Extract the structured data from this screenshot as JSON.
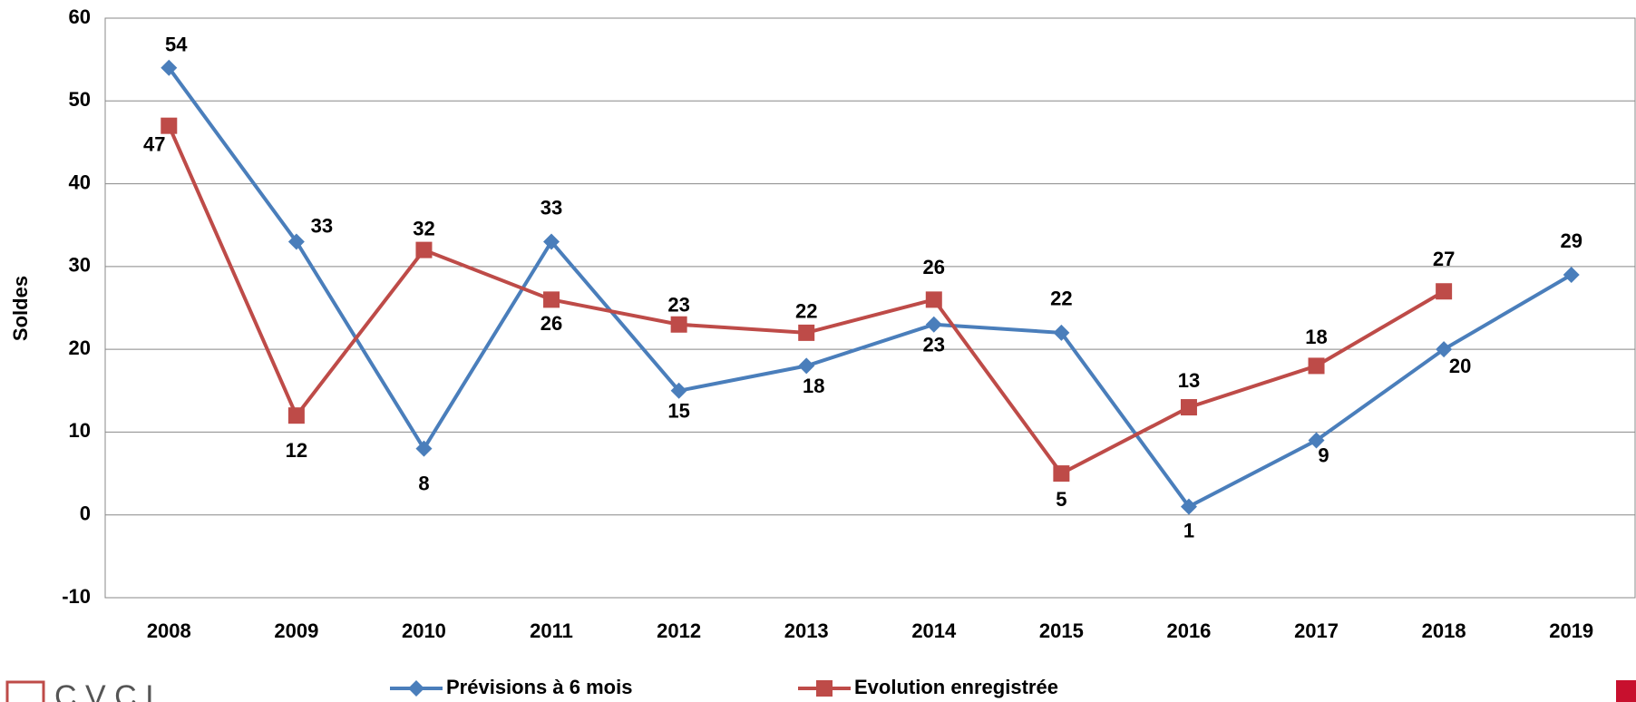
{
  "chart_data": {
    "type": "line",
    "y_label": "Soldes",
    "categories": [
      "2008",
      "2009",
      "2010",
      "2011",
      "2012",
      "2013",
      "2014",
      "2015",
      "2016",
      "2017",
      "2018",
      "2019"
    ],
    "series": [
      {
        "name": "Prévisions à 6 mois",
        "color": "#4a7ebb",
        "marker": "diamond",
        "values": [
          54,
          33,
          8,
          33,
          15,
          18,
          23,
          22,
          1,
          9,
          20,
          29
        ]
      },
      {
        "name": "Evolution enregistrée",
        "color": "#be4b48",
        "marker": "square",
        "values": [
          47,
          12,
          32,
          26,
          23,
          22,
          26,
          5,
          13,
          18,
          27,
          null
        ]
      }
    ],
    "ylim": [
      -10,
      60
    ],
    "yticks": [
      -10,
      0,
      10,
      20,
      30,
      40,
      50,
      60
    ],
    "grid": true,
    "legend": "bottom",
    "logo": "C V C I"
  }
}
